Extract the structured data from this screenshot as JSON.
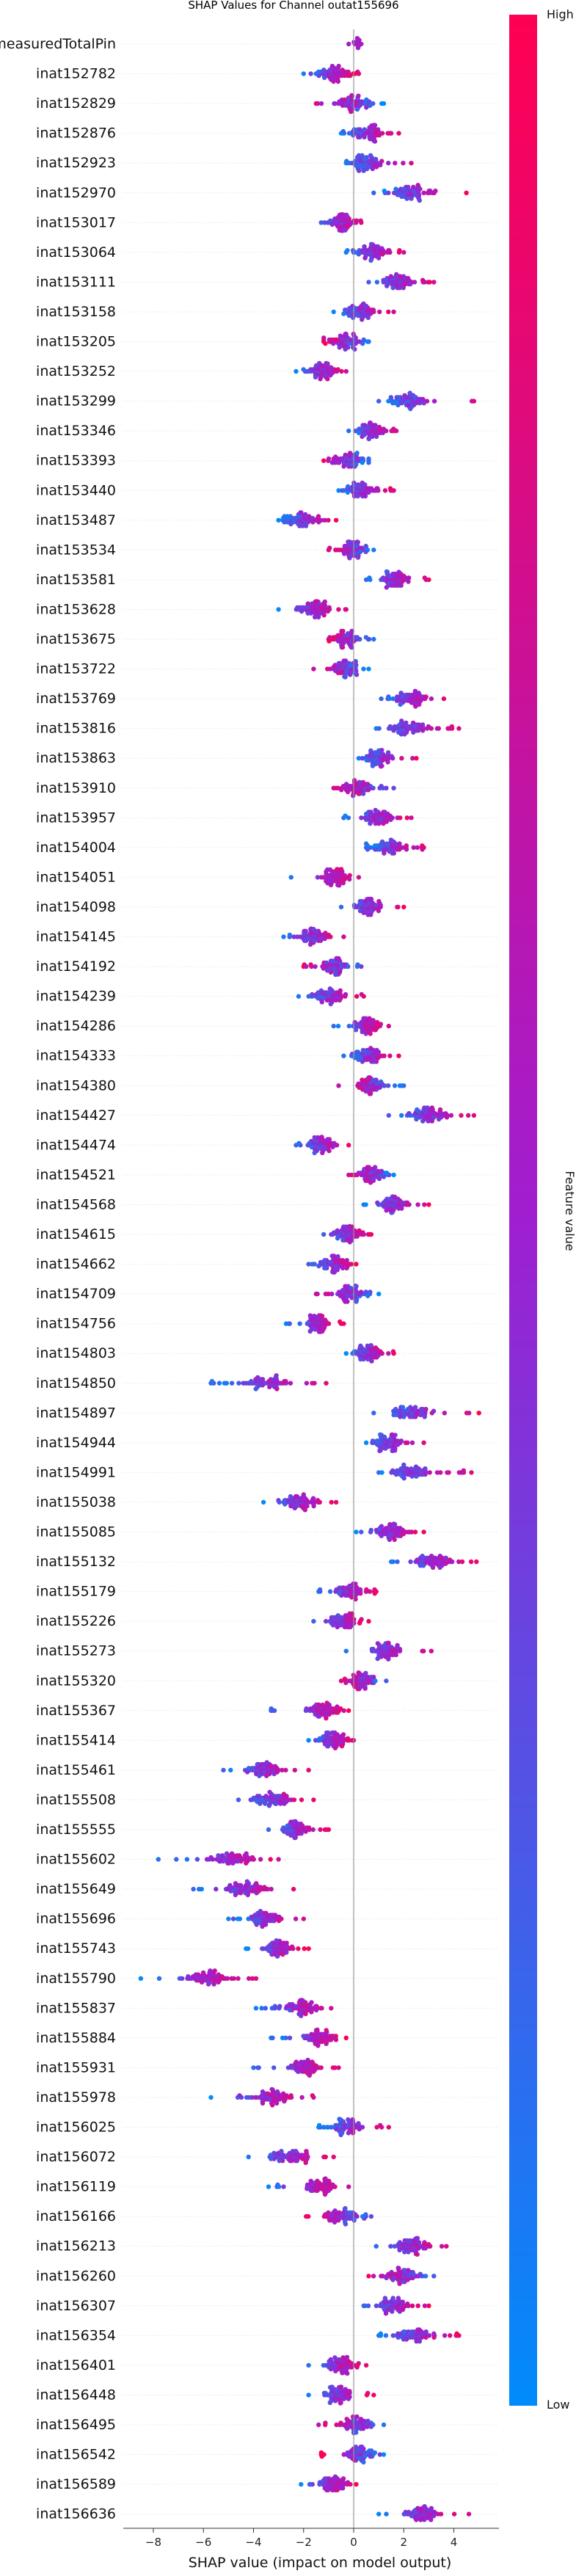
{
  "chart_data": {
    "type": "scatter",
    "title": "SHAP Values for Channel outat155696",
    "xlabel": "SHAP value (impact on model output)",
    "xlim": [
      -9.2,
      5.8
    ],
    "x_ticks": [
      -8,
      -6,
      -4,
      -2,
      0,
      2,
      4
    ],
    "colorbar": {
      "label": "Feature value",
      "high_label": "High",
      "low_label": "Low",
      "low_color": "#008bfb",
      "high_color": "#ff0052"
    },
    "features": [
      {
        "name": "measuredTotalPin",
        "center": 0.1,
        "spread": 0.2,
        "min": -0.2,
        "max": 0.3,
        "high_side": "none"
      },
      {
        "name": "inat152782",
        "center": -0.8,
        "spread": 0.6,
        "min": -2.0,
        "max": 0.2,
        "high_side": "right"
      },
      {
        "name": "inat152829",
        "center": 0.0,
        "spread": 0.7,
        "min": -1.5,
        "max": 1.2,
        "high_side": "left"
      },
      {
        "name": "inat152876",
        "center": 0.5,
        "spread": 0.6,
        "min": -0.5,
        "max": 1.8,
        "high_side": "right"
      },
      {
        "name": "inat152923",
        "center": 0.5,
        "spread": 0.6,
        "min": -0.3,
        "max": 2.3,
        "high_side": "right"
      },
      {
        "name": "inat152970",
        "center": 2.3,
        "spread": 0.8,
        "min": 0.8,
        "max": 4.5,
        "high_side": "right"
      },
      {
        "name": "inat153017",
        "center": -0.5,
        "spread": 0.5,
        "min": -1.3,
        "max": 0.3,
        "high_side": "right"
      },
      {
        "name": "inat153064",
        "center": 0.7,
        "spread": 0.6,
        "min": -0.3,
        "max": 2.0,
        "high_side": "right"
      },
      {
        "name": "inat153111",
        "center": 1.8,
        "spread": 0.7,
        "min": 0.6,
        "max": 3.2,
        "high_side": "right"
      },
      {
        "name": "inat153158",
        "center": 0.2,
        "spread": 0.6,
        "min": -0.8,
        "max": 1.6,
        "high_side": "right"
      },
      {
        "name": "inat153205",
        "center": -0.3,
        "spread": 0.5,
        "min": -1.2,
        "max": 0.6,
        "high_side": "left"
      },
      {
        "name": "inat153252",
        "center": -1.2,
        "spread": 0.5,
        "min": -2.3,
        "max": -0.3,
        "high_side": "right"
      },
      {
        "name": "inat153299",
        "center": 2.2,
        "spread": 0.8,
        "min": 1.0,
        "max": 4.8,
        "high_side": "right"
      },
      {
        "name": "inat153346",
        "center": 0.7,
        "spread": 0.5,
        "min": -0.2,
        "max": 1.7,
        "high_side": "right"
      },
      {
        "name": "inat153393",
        "center": -0.2,
        "spread": 0.6,
        "min": -1.2,
        "max": 0.6,
        "high_side": "left"
      },
      {
        "name": "inat153440",
        "center": 0.3,
        "spread": 0.6,
        "min": -0.6,
        "max": 1.6,
        "high_side": "right"
      },
      {
        "name": "inat153487",
        "center": -2.0,
        "spread": 0.7,
        "min": -3.0,
        "max": -0.7,
        "high_side": "right"
      },
      {
        "name": "inat153534",
        "center": 0.0,
        "spread": 0.5,
        "min": -1.0,
        "max": 0.8,
        "high_side": "left"
      },
      {
        "name": "inat153581",
        "center": 1.6,
        "spread": 0.6,
        "min": 0.5,
        "max": 3.0,
        "high_side": "right"
      },
      {
        "name": "inat153628",
        "center": -1.5,
        "spread": 0.6,
        "min": -3.0,
        "max": -0.3,
        "high_side": "right"
      },
      {
        "name": "inat153675",
        "center": -0.3,
        "spread": 0.5,
        "min": -1.0,
        "max": 0.8,
        "high_side": "left"
      },
      {
        "name": "inat153722",
        "center": -0.3,
        "spread": 0.5,
        "min": -1.6,
        "max": 0.6,
        "high_side": "left"
      },
      {
        "name": "inat153769",
        "center": 2.3,
        "spread": 0.6,
        "min": 1.1,
        "max": 3.6,
        "high_side": "right"
      },
      {
        "name": "inat153816",
        "center": 2.2,
        "spread": 0.7,
        "min": 0.9,
        "max": 4.2,
        "high_side": "right"
      },
      {
        "name": "inat153863",
        "center": 1.0,
        "spread": 0.6,
        "min": 0.2,
        "max": 2.5,
        "high_side": "right"
      },
      {
        "name": "inat153910",
        "center": 0.1,
        "spread": 0.6,
        "min": -0.8,
        "max": 1.6,
        "high_side": "left"
      },
      {
        "name": "inat153957",
        "center": 1.0,
        "spread": 0.6,
        "min": -0.4,
        "max": 2.3,
        "high_side": "right"
      },
      {
        "name": "inat154004",
        "center": 1.4,
        "spread": 0.7,
        "min": 0.5,
        "max": 2.8,
        "high_side": "right"
      },
      {
        "name": "inat154051",
        "center": -0.7,
        "spread": 0.5,
        "min": -2.5,
        "max": 0.2,
        "high_side": "right"
      },
      {
        "name": "inat154098",
        "center": 0.6,
        "spread": 0.6,
        "min": -0.5,
        "max": 2.0,
        "high_side": "right"
      },
      {
        "name": "inat154145",
        "center": -1.6,
        "spread": 0.6,
        "min": -2.8,
        "max": -0.4,
        "high_side": "right"
      },
      {
        "name": "inat154192",
        "center": -0.8,
        "spread": 0.6,
        "min": -2.0,
        "max": 0.3,
        "high_side": "left"
      },
      {
        "name": "inat154239",
        "center": -1.0,
        "spread": 0.6,
        "min": -2.2,
        "max": 0.4,
        "high_side": "right"
      },
      {
        "name": "inat154286",
        "center": 0.6,
        "spread": 0.6,
        "min": -0.8,
        "max": 1.4,
        "high_side": "right"
      },
      {
        "name": "inat154333",
        "center": 0.6,
        "spread": 0.6,
        "min": -0.4,
        "max": 1.8,
        "high_side": "right"
      },
      {
        "name": "inat154380",
        "center": 0.7,
        "spread": 0.6,
        "min": -0.6,
        "max": 2.0,
        "high_side": "left"
      },
      {
        "name": "inat154427",
        "center": 3.0,
        "spread": 0.8,
        "min": 1.4,
        "max": 4.8,
        "high_side": "right"
      },
      {
        "name": "inat154474",
        "center": -1.3,
        "spread": 0.5,
        "min": -2.3,
        "max": -0.2,
        "high_side": "right"
      },
      {
        "name": "inat154521",
        "center": 0.8,
        "spread": 0.6,
        "min": -0.2,
        "max": 1.6,
        "high_side": "left"
      },
      {
        "name": "inat154568",
        "center": 1.6,
        "spread": 0.6,
        "min": 0.4,
        "max": 3.0,
        "high_side": "right"
      },
      {
        "name": "inat154615",
        "center": -0.2,
        "spread": 0.5,
        "min": -1.2,
        "max": 0.7,
        "high_side": "right"
      },
      {
        "name": "inat154662",
        "center": -0.7,
        "spread": 0.5,
        "min": -1.8,
        "max": 0.1,
        "high_side": "right"
      },
      {
        "name": "inat154709",
        "center": -0.1,
        "spread": 0.6,
        "min": -1.5,
        "max": 1.0,
        "high_side": "left"
      },
      {
        "name": "inat154756",
        "center": -1.5,
        "spread": 0.5,
        "min": -2.7,
        "max": -0.4,
        "high_side": "right"
      },
      {
        "name": "inat154803",
        "center": 0.6,
        "spread": 0.6,
        "min": -0.3,
        "max": 1.6,
        "high_side": "right"
      },
      {
        "name": "inat154850",
        "center": -3.5,
        "spread": 0.9,
        "min": -5.7,
        "max": -1.1,
        "high_side": "right"
      },
      {
        "name": "inat154897",
        "center": 2.3,
        "spread": 0.7,
        "min": 0.8,
        "max": 5.0,
        "high_side": "right"
      },
      {
        "name": "inat154944",
        "center": 1.4,
        "spread": 0.5,
        "min": 0.5,
        "max": 2.8,
        "high_side": "right"
      },
      {
        "name": "inat154991",
        "center": 2.3,
        "spread": 0.7,
        "min": 1.0,
        "max": 4.7,
        "high_side": "right"
      },
      {
        "name": "inat155038",
        "center": -2.1,
        "spread": 0.8,
        "min": -3.6,
        "max": -0.7,
        "high_side": "right"
      },
      {
        "name": "inat155085",
        "center": 1.5,
        "spread": 0.6,
        "min": 0.1,
        "max": 2.8,
        "high_side": "right"
      },
      {
        "name": "inat155132",
        "center": 3.2,
        "spread": 0.8,
        "min": 1.5,
        "max": 4.9,
        "high_side": "right"
      },
      {
        "name": "inat155179",
        "center": -0.1,
        "spread": 0.6,
        "min": -1.4,
        "max": 0.9,
        "high_side": "right"
      },
      {
        "name": "inat155226",
        "center": -0.4,
        "spread": 0.6,
        "min": -1.6,
        "max": 0.6,
        "high_side": "right"
      },
      {
        "name": "inat155273",
        "center": 1.3,
        "spread": 0.6,
        "min": -0.3,
        "max": 3.1,
        "high_side": "right"
      },
      {
        "name": "inat155320",
        "center": 0.3,
        "spread": 0.5,
        "min": -0.5,
        "max": 1.3,
        "high_side": "left"
      },
      {
        "name": "inat155367",
        "center": -1.2,
        "spread": 0.7,
        "min": -3.3,
        "max": -0.2,
        "high_side": "right"
      },
      {
        "name": "inat155414",
        "center": -0.8,
        "spread": 0.5,
        "min": -1.8,
        "max": 0.0,
        "high_side": "right"
      },
      {
        "name": "inat155461",
        "center": -3.5,
        "spread": 0.8,
        "min": -5.2,
        "max": -1.8,
        "high_side": "right"
      },
      {
        "name": "inat155508",
        "center": -3.2,
        "spread": 0.8,
        "min": -4.6,
        "max": -1.6,
        "high_side": "right"
      },
      {
        "name": "inat155555",
        "center": -2.3,
        "spread": 0.6,
        "min": -3.4,
        "max": -1.0,
        "high_side": "right"
      },
      {
        "name": "inat155602",
        "center": -4.8,
        "spread": 0.9,
        "min": -7.8,
        "max": -3.0,
        "high_side": "right"
      },
      {
        "name": "inat155649",
        "center": -4.3,
        "spread": 0.8,
        "min": -6.4,
        "max": -2.4,
        "high_side": "right"
      },
      {
        "name": "inat155696",
        "center": -3.5,
        "spread": 0.7,
        "min": -5.0,
        "max": -2.0,
        "high_side": "right"
      },
      {
        "name": "inat155743",
        "center": -3.0,
        "spread": 0.6,
        "min": -4.3,
        "max": -1.8,
        "high_side": "right"
      },
      {
        "name": "inat155790",
        "center": -5.8,
        "spread": 0.9,
        "min": -8.5,
        "max": -3.9,
        "high_side": "right"
      },
      {
        "name": "inat155837",
        "center": -2.0,
        "spread": 0.6,
        "min": -3.9,
        "max": -0.9,
        "high_side": "right"
      },
      {
        "name": "inat155884",
        "center": -1.3,
        "spread": 0.6,
        "min": -3.3,
        "max": -0.3,
        "high_side": "right"
      },
      {
        "name": "inat155931",
        "center": -2.0,
        "spread": 0.7,
        "min": -4.0,
        "max": -0.6,
        "high_side": "right"
      },
      {
        "name": "inat155978",
        "center": -3.2,
        "spread": 0.8,
        "min": -5.7,
        "max": -1.6,
        "high_side": "right"
      },
      {
        "name": "inat156025",
        "center": -0.3,
        "spread": 0.6,
        "min": -1.4,
        "max": 1.4,
        "high_side": "right"
      },
      {
        "name": "inat156072",
        "center": -2.5,
        "spread": 0.8,
        "min": -4.2,
        "max": -0.8,
        "high_side": "right"
      },
      {
        "name": "inat156119",
        "center": -1.3,
        "spread": 0.6,
        "min": -3.4,
        "max": -0.2,
        "high_side": "right"
      },
      {
        "name": "inat156166",
        "center": -0.5,
        "spread": 0.6,
        "min": -1.9,
        "max": 0.7,
        "high_side": "left"
      },
      {
        "name": "inat156213",
        "center": 2.4,
        "spread": 0.7,
        "min": 0.9,
        "max": 3.7,
        "high_side": "right"
      },
      {
        "name": "inat156260",
        "center": 1.9,
        "spread": 0.6,
        "min": 0.6,
        "max": 3.2,
        "high_side": "left"
      },
      {
        "name": "inat156307",
        "center": 1.6,
        "spread": 0.6,
        "min": 0.4,
        "max": 3.0,
        "high_side": "right"
      },
      {
        "name": "inat156354",
        "center": 2.4,
        "spread": 0.8,
        "min": 1.0,
        "max": 4.2,
        "high_side": "right"
      },
      {
        "name": "inat156401",
        "center": -0.5,
        "spread": 0.6,
        "min": -1.8,
        "max": 0.5,
        "high_side": "right"
      },
      {
        "name": "inat156448",
        "center": -0.6,
        "spread": 0.6,
        "min": -1.8,
        "max": 0.8,
        "high_side": "right"
      },
      {
        "name": "inat156495",
        "center": 0.1,
        "spread": 0.6,
        "min": -1.4,
        "max": 1.2,
        "high_side": "left"
      },
      {
        "name": "inat156542",
        "center": 0.2,
        "spread": 0.6,
        "min": -1.3,
        "max": 1.2,
        "high_side": "left"
      },
      {
        "name": "inat156589",
        "center": -0.8,
        "spread": 0.5,
        "min": -2.1,
        "max": 0.1,
        "high_side": "right"
      },
      {
        "name": "inat156636",
        "center": 2.8,
        "spread": 0.7,
        "min": 1.0,
        "max": 4.6,
        "high_side": "right"
      }
    ]
  }
}
